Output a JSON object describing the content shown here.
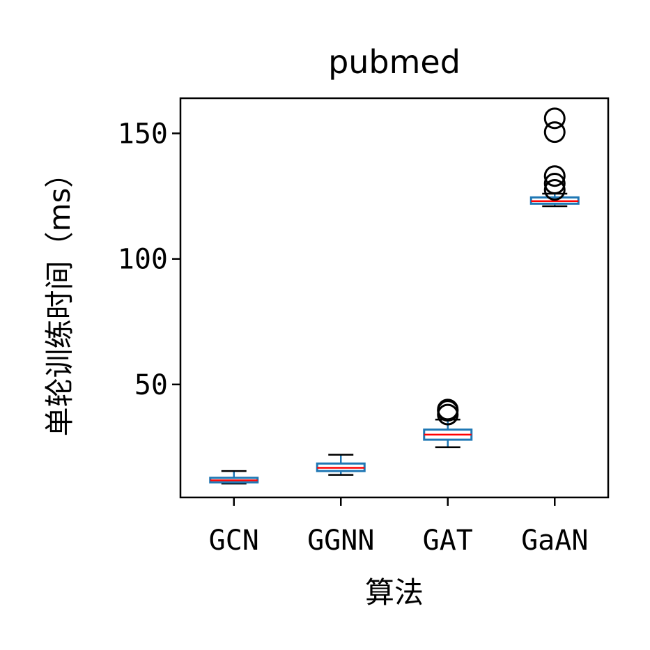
{
  "chart_data": {
    "type": "box",
    "title": "pubmed",
    "xlabel": "算法",
    "ylabel": "单轮训练时间（ms）",
    "ylim": [
      5,
      164
    ],
    "yticks": [
      50,
      100,
      150
    ],
    "grid": false,
    "categories": [
      "GCN",
      "GGNN",
      "GAT",
      "GaAN"
    ],
    "boxes": [
      {
        "category": "GCN",
        "whisker_low": 10.5,
        "q1": 11.0,
        "median": 11.8,
        "q3": 12.8,
        "whisker_high": 15.5,
        "outliers": []
      },
      {
        "category": "GGNN",
        "whisker_low": 14.0,
        "q1": 15.5,
        "median": 16.8,
        "q3": 18.5,
        "whisker_high": 22.0,
        "outliers": []
      },
      {
        "category": "GAT",
        "whisker_low": 25.0,
        "q1": 28.0,
        "median": 30.0,
        "q3": 32.0,
        "whisker_high": 36.0,
        "outliers": [
          38.0,
          39.5,
          40.0
        ]
      },
      {
        "category": "GaAN",
        "whisker_low": 121.0,
        "q1": 122.0,
        "median": 123.0,
        "q3": 124.5,
        "whisker_high": 126.0,
        "outliers": [
          127.5,
          130.0,
          133.0,
          150.5,
          156.0
        ]
      }
    ],
    "colors": {
      "box": "#1f77b4",
      "median": "#ff0000",
      "whisker": "#000000",
      "outlier": "#000000"
    }
  }
}
